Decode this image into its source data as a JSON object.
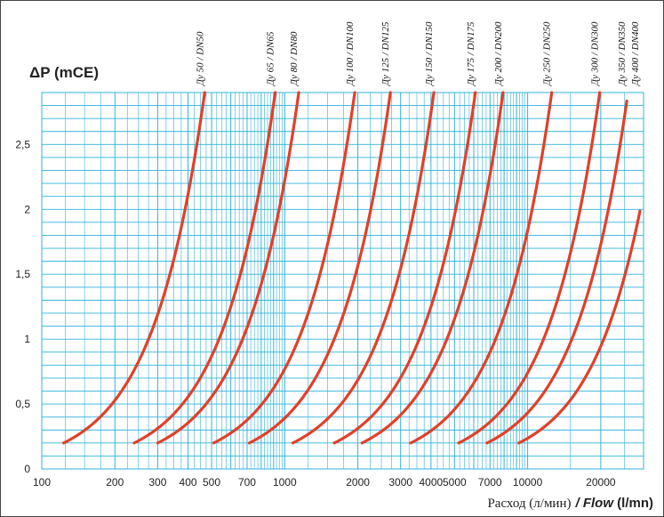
{
  "chart_data": {
    "type": "line",
    "ylabel": "ΔP (mCE)",
    "xlabel_ru": "Расход (л/мин)",
    "xlabel_en_prefix": "/ ",
    "xlabel_en_word": "Flow",
    "xlabel_en_unit": " (l/mn)",
    "x_scale": "log",
    "xlim": [
      100,
      30000
    ],
    "ylim": [
      0,
      2.9
    ],
    "grid": true,
    "colors": {
      "grid": "#31b3da",
      "curve": "#e0402a",
      "frame": "#444444"
    },
    "x_ticks": [
      {
        "value": 100,
        "label": "100"
      },
      {
        "value": 200,
        "label": "200"
      },
      {
        "value": 300,
        "label": "300"
      },
      {
        "value": 400,
        "label": "400"
      },
      {
        "value": 500,
        "label": "500"
      },
      {
        "value": 700,
        "label": "700"
      },
      {
        "value": 1000,
        "label": "1000"
      },
      {
        "value": 2000,
        "label": "2000"
      },
      {
        "value": 3000,
        "label": "3000"
      },
      {
        "value": 4000,
        "label": "4000"
      },
      {
        "value": 5000,
        "label": "5000"
      },
      {
        "value": 7000,
        "label": "7000"
      },
      {
        "value": 10000,
        "label": "10000"
      },
      {
        "value": 20000,
        "label": "20000"
      }
    ],
    "y_ticks": [
      {
        "value": 0,
        "label": "0"
      },
      {
        "value": 0.5,
        "label": "0,5"
      },
      {
        "value": 1,
        "label": "1"
      },
      {
        "value": 1.5,
        "label": "1,5"
      },
      {
        "value": 2,
        "label": "2"
      },
      {
        "value": 2.5,
        "label": "2,5"
      }
    ],
    "series": [
      {
        "name": "Ду 50 / DN50",
        "x_start": 123,
        "x_end": 600
      },
      {
        "name": "Ду 65 / DN65",
        "x_start": 240,
        "x_end": 1150
      },
      {
        "name": "Ду 80 / DN80",
        "x_start": 300,
        "x_end": 1500
      },
      {
        "name": "Ду 100 / DN100",
        "x_start": 510,
        "x_end": 2500
      },
      {
        "name": "Ду 125 / DN125",
        "x_start": 715,
        "x_end": 3600
      },
      {
        "name": "Ду 150 / DN150",
        "x_start": 1080,
        "x_end": 5200
      },
      {
        "name": "Ду 175 / DN175",
        "x_start": 1600,
        "x_end": 7200
      },
      {
        "name": "Ду 200 / DN200",
        "x_start": 2080,
        "x_end": 9300
      },
      {
        "name": "Ду 250 / DN250",
        "x_start": 3300,
        "x_end": 13500
      },
      {
        "name": "Ду 300 / DN300",
        "x_start": 5200,
        "x_end": 20800
      },
      {
        "name": "Ду 350 / DN350",
        "x_start": 6800,
        "x_end": 25600
      },
      {
        "name": "Ду 400 / DN400",
        "x_start": 9200,
        "x_end": 29000
      }
    ]
  }
}
